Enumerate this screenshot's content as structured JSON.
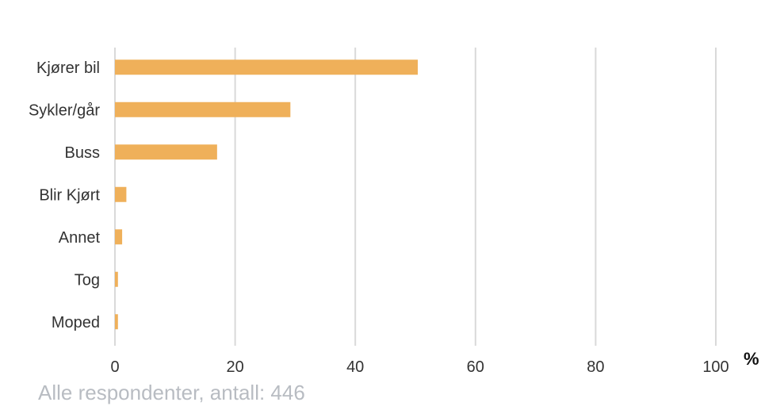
{
  "chart_data": {
    "type": "bar",
    "orientation": "horizontal",
    "categories": [
      "Kjører bil",
      "Sykler/går",
      "Buss",
      "Blir Kjørt",
      "Annet",
      "Tog",
      "Moped"
    ],
    "values": [
      50.4,
      29.2,
      17.0,
      1.9,
      1.2,
      0.5,
      0.5
    ],
    "xlim": [
      0,
      100
    ],
    "xticks": [
      "0",
      "20",
      "40",
      "60",
      "80",
      "100"
    ],
    "xlabel": "%",
    "grid": "vertical",
    "legend": "none",
    "bar_color": "#EFB05A",
    "gridline_color": "#D9D9D9"
  },
  "footnote": "Alle respondenter, antall: 446"
}
